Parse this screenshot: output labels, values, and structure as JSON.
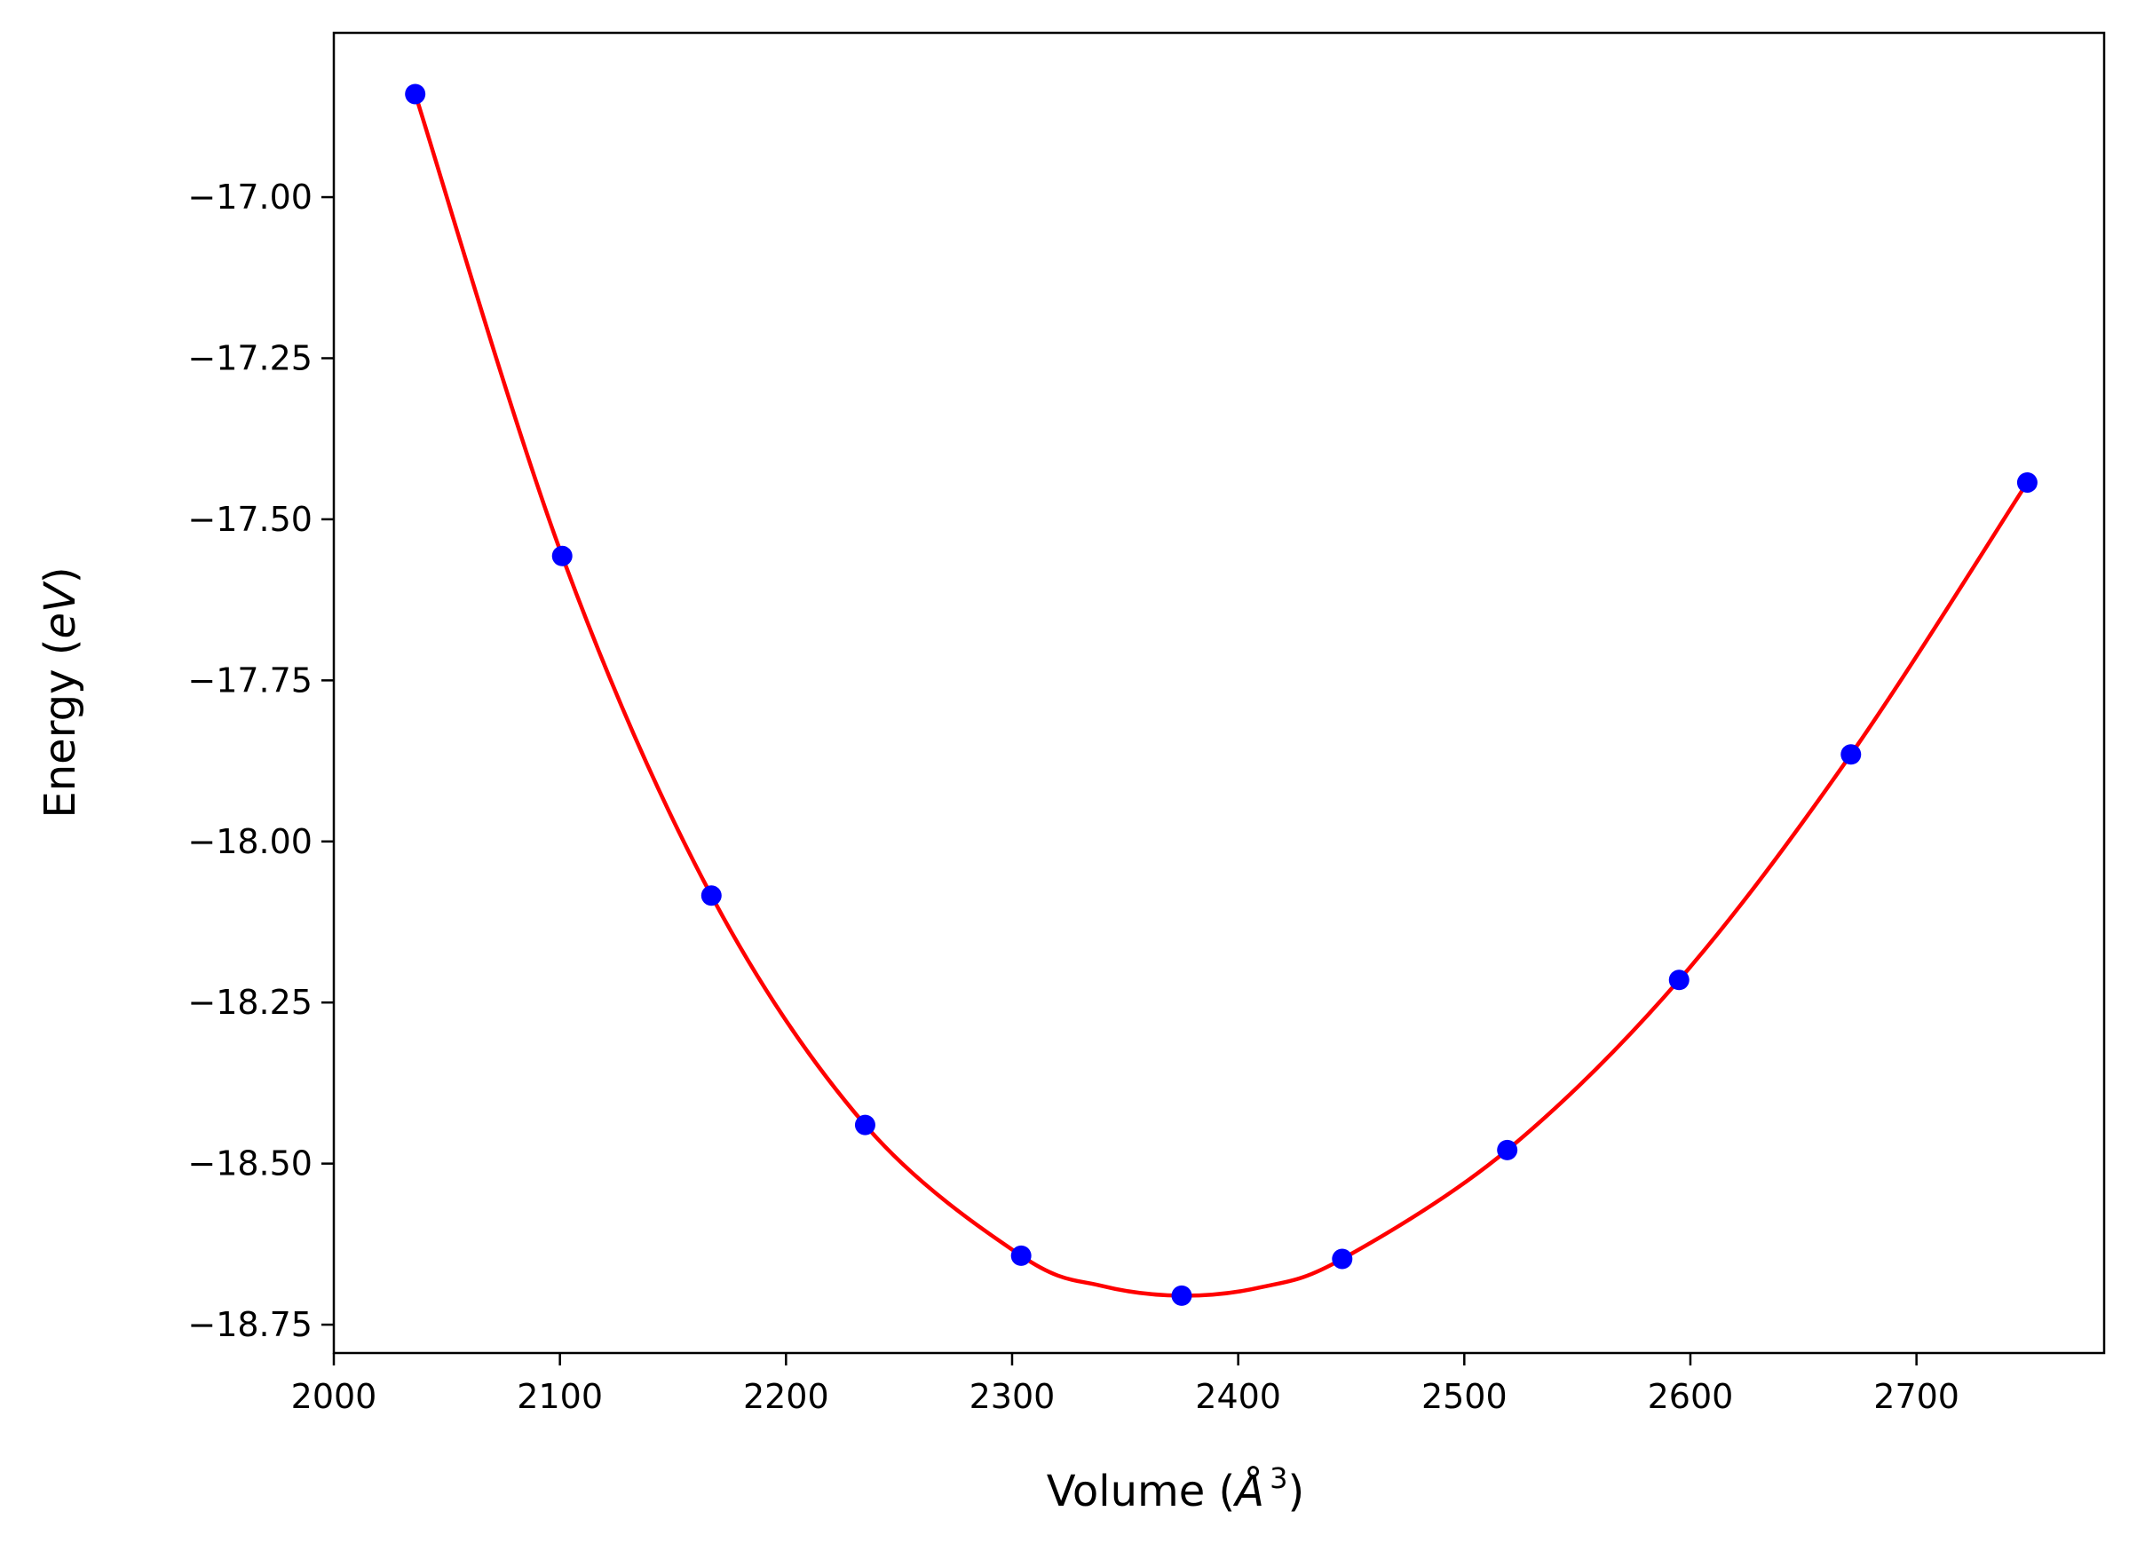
{
  "chart_data": {
    "type": "scatter",
    "title": "",
    "xlabel": {
      "main": "Volume (",
      "symbol": "Å",
      "sup": "3",
      "close": ")"
    },
    "ylabel": {
      "main": "Energy (",
      "symbol": "eV",
      "close": ")"
    },
    "xlim": [
      2000,
      2783
    ],
    "ylim": [
      -18.794,
      -16.745
    ],
    "x_ticks": [
      2000,
      2100,
      2200,
      2300,
      2400,
      2500,
      2600,
      2700
    ],
    "x_tick_labels": [
      "2000",
      "2100",
      "2200",
      "2300",
      "2400",
      "2500",
      "2600",
      "2700"
    ],
    "y_ticks": [
      -17.0,
      -17.25,
      -17.5,
      -17.75,
      -18.0,
      -18.25,
      -18.5,
      -18.75
    ],
    "y_tick_labels": [
      "−17.00",
      "−17.25",
      "−17.50",
      "−17.75",
      "−18.00",
      "−18.25",
      "−18.50",
      "−18.75"
    ],
    "grid": false,
    "legend": "none",
    "series": [
      {
        "kind": "points",
        "color": "#0000ff",
        "x": [
          2036,
          2101,
          2167,
          2235,
          2304,
          2375,
          2446,
          2519,
          2595,
          2671,
          2749
        ],
        "y": [
          -16.84,
          -17.557,
          -18.084,
          -18.44,
          -18.643,
          -18.705,
          -18.648,
          -18.479,
          -18.215,
          -17.865,
          -17.443
        ]
      },
      {
        "kind": "fit-curve",
        "color": "#ff0000",
        "x": [
          2036,
          2101,
          2167,
          2235,
          2304,
          2340,
          2375,
          2410,
          2446,
          2519,
          2595,
          2671,
          2749
        ],
        "y": [
          -16.84,
          -17.557,
          -18.084,
          -18.44,
          -18.643,
          -18.69,
          -18.705,
          -18.692,
          -18.648,
          -18.479,
          -18.215,
          -17.865,
          -17.443
        ]
      }
    ]
  }
}
